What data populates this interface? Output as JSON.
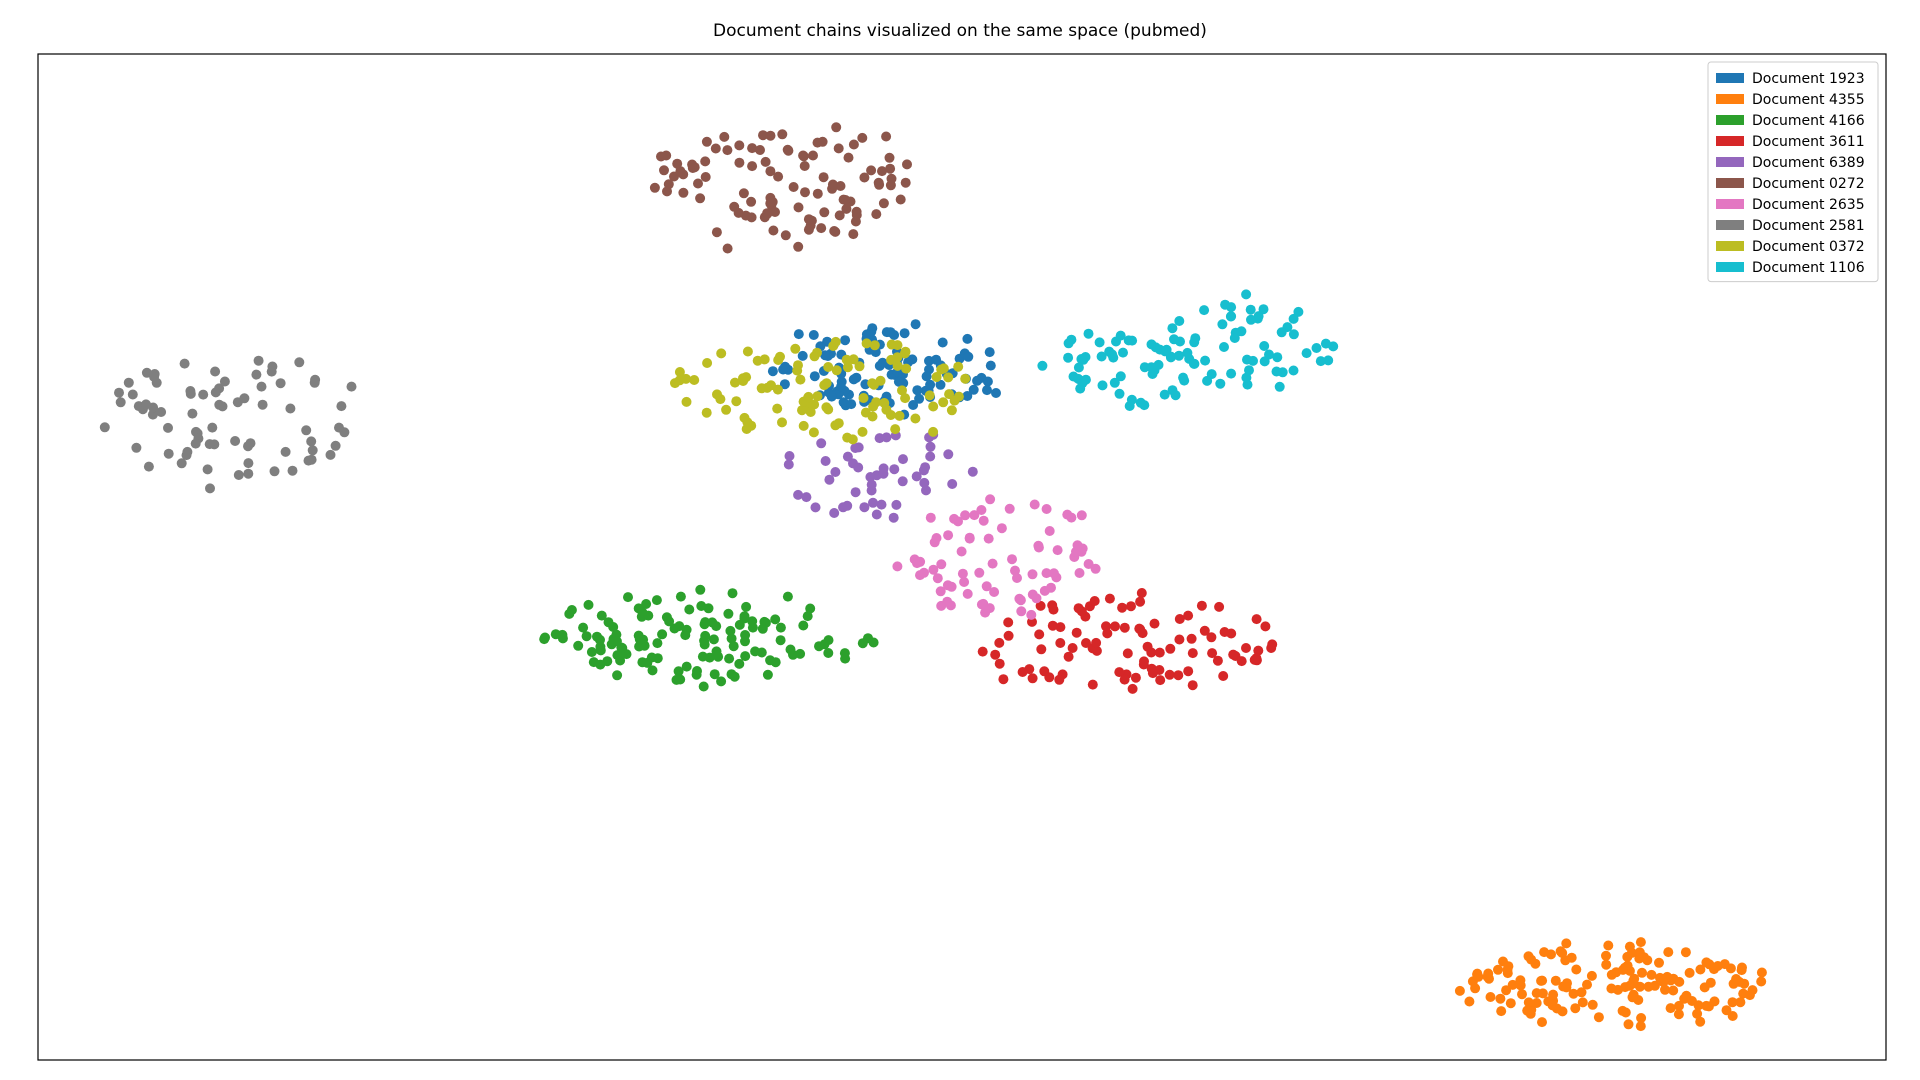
{
  "chart_data": {
    "type": "scatter",
    "title": "Document chains visualized on the same space (pubmed)",
    "xlabel": "",
    "ylabel": "",
    "axes_ticks": false,
    "grid": false,
    "legend_position": "top-right",
    "xlim": [
      0,
      1000
    ],
    "ylim": [
      0,
      1000
    ],
    "series": [
      {
        "name": "Document 1923",
        "color": "#1f77b4",
        "clusters": [
          {
            "cx": 460,
            "cy": 690,
            "sx": 65,
            "sy": 45,
            "n": 105
          }
        ]
      },
      {
        "name": "Document 4355",
        "color": "#ff7f0e",
        "clusters": [
          {
            "cx": 855,
            "cy": 75,
            "sx": 82,
            "sy": 40,
            "n": 150
          }
        ]
      },
      {
        "name": "Document 4166",
        "color": "#2ca02c",
        "clusters": [
          {
            "cx": 360,
            "cy": 420,
            "sx": 88,
            "sy": 45,
            "n": 130
          }
        ]
      },
      {
        "name": "Document 3611",
        "color": "#d62728",
        "clusters": [
          {
            "cx": 590,
            "cy": 415,
            "sx": 80,
            "sy": 50,
            "n": 95
          }
        ]
      },
      {
        "name": "Document 6389",
        "color": "#9467bd",
        "clusters": [
          {
            "cx": 455,
            "cy": 585,
            "sx": 48,
            "sy": 50,
            "n": 48
          }
        ]
      },
      {
        "name": "Document 0272",
        "color": "#8c564b",
        "clusters": [
          {
            "cx": 400,
            "cy": 870,
            "sx": 75,
            "sy": 60,
            "n": 105
          }
        ]
      },
      {
        "name": "Document 2635",
        "color": "#e377c2",
        "clusters": [
          {
            "cx": 525,
            "cy": 500,
            "sx": 58,
            "sy": 60,
            "n": 75
          }
        ]
      },
      {
        "name": "Document 2581",
        "color": "#7f7f7f",
        "clusters": [
          {
            "cx": 105,
            "cy": 635,
            "sx": 65,
            "sy": 70,
            "n": 75
          }
        ]
      },
      {
        "name": "Document 0372",
        "color": "#bcbd22",
        "clusters": [
          {
            "cx": 425,
            "cy": 670,
            "sx": 82,
            "sy": 50,
            "n": 105
          }
        ]
      },
      {
        "name": "Document 1106",
        "color": "#17becf",
        "clusters": [
          {
            "cx": 590,
            "cy": 690,
            "sx": 38,
            "sy": 38,
            "n": 50
          },
          {
            "cx": 655,
            "cy": 710,
            "sx": 45,
            "sy": 45,
            "n": 55
          }
        ]
      }
    ]
  }
}
